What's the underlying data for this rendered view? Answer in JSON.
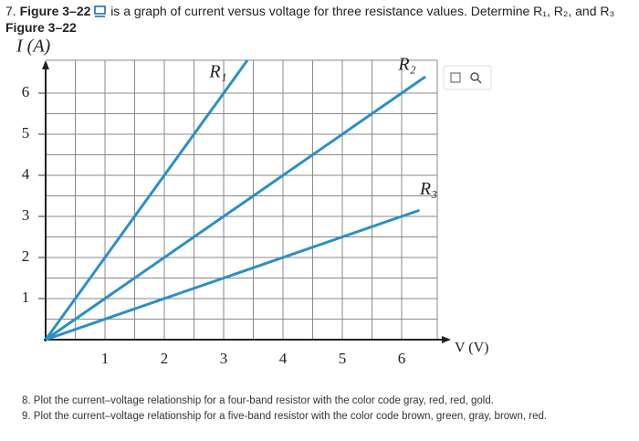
{
  "question_7": {
    "number": "7.",
    "figure_ref": "Figure 3–22",
    "text": "is a graph of current versus voltage for three resistance values. Determine R₁, R₂, and R₃",
    "caption": "Figure 3–22"
  },
  "chart_data": {
    "type": "line",
    "ylabel": "I (A)",
    "xlabel": "V (V)",
    "xlim": [
      0,
      6.6
    ],
    "ylim": [
      0,
      6.8
    ],
    "xticks": [
      1,
      2,
      3,
      4,
      5,
      6
    ],
    "yticks": [
      1,
      2,
      3,
      4,
      5,
      6
    ],
    "grid": true,
    "minor_grid": true,
    "series": [
      {
        "name": "R₁",
        "color": "#2b8fc6",
        "x": [
          0,
          3.4
        ],
        "values": [
          0,
          6.8
        ]
      },
      {
        "name": "R₂",
        "color": "#2b8fc6",
        "x": [
          0,
          6.4
        ],
        "values": [
          0,
          6.4
        ]
      },
      {
        "name": "R₃",
        "color": "#2b8fc6",
        "x": [
          0,
          6.3
        ],
        "values": [
          0,
          3.15
        ]
      }
    ]
  },
  "questions": [
    "8. Plot the current–voltage relationship for a four-band resistor with the color code gray, red, red, gold.",
    "9. Plot the current–voltage relationship for a five-band resistor with the color code brown, green, gray, brown, red."
  ]
}
